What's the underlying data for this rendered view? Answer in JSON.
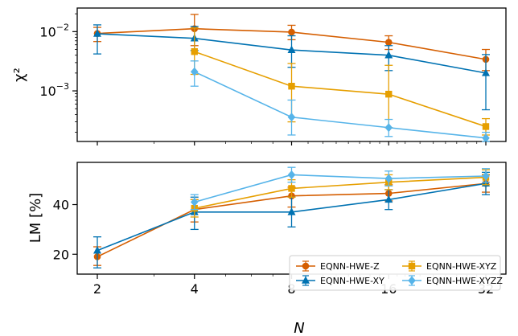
{
  "chart_data": [
    {
      "type": "line",
      "ylabel": "χ²",
      "yscale": "log",
      "ylim": [
        0.00014,
        0.025
      ],
      "x": [
        2,
        4,
        8,
        16,
        32
      ],
      "xscale": "log2",
      "yticks": [
        {
          "value": 0.01,
          "base": "10",
          "exp": "−2"
        },
        {
          "value": 0.001,
          "base": "10",
          "exp": "−3"
        }
      ],
      "series": [
        {
          "name": "EQNN-HWE-Z",
          "color": "#d55e00",
          "marker": "circle",
          "points": [
            {
              "x": 2,
              "y": 0.0093,
              "lo": 0.0068,
              "hi": 0.0118
            },
            {
              "x": 4,
              "y": 0.0112,
              "lo": 0.0058,
              "hi": 0.0195
            },
            {
              "x": 8,
              "y": 0.0098,
              "lo": 0.0073,
              "hi": 0.0128
            },
            {
              "x": 16,
              "y": 0.0066,
              "lo": 0.005,
              "hi": 0.0085
            },
            {
              "x": 32,
              "y": 0.0034,
              "lo": 0.0022,
              "hi": 0.005
            }
          ]
        },
        {
          "name": "EQNN-HWE-XY",
          "color": "#0072b2",
          "marker": "triangle",
          "points": [
            {
              "x": 2,
              "y": 0.0092,
              "lo": 0.0042,
              "hi": 0.013
            },
            {
              "x": 4,
              "y": 0.0077,
              "lo": 0.0048,
              "hi": 0.0122
            },
            {
              "x": 8,
              "y": 0.0049,
              "lo": 0.0025,
              "hi": 0.0085
            },
            {
              "x": 16,
              "y": 0.004,
              "lo": 0.0022,
              "hi": 0.0058
            },
            {
              "x": 32,
              "y": 0.002,
              "lo": 0.00048,
              "hi": 0.0041
            }
          ]
        },
        {
          "name": "EQNN-HWE-XYZ",
          "color": "#e69f00",
          "marker": "square",
          "points": [
            {
              "x": 4,
              "y": 0.0046,
              "lo": 0.0019,
              "hi": 0.0115
            },
            {
              "x": 8,
              "y": 0.0012,
              "lo": 0.0003,
              "hi": 0.0029
            },
            {
              "x": 16,
              "y": 0.00088,
              "lo": 0.00024,
              "hi": 0.0027
            },
            {
              "x": 32,
              "y": 0.00025,
              "lo": 0.00018,
              "hi": 0.00034
            }
          ]
        },
        {
          "name": "EQNN-HWE-XYZZ",
          "color": "#56b4e9",
          "marker": "diamond",
          "points": [
            {
              "x": 4,
              "y": 0.0021,
              "lo": 0.0012,
              "hi": 0.0032
            },
            {
              "x": 8,
              "y": 0.00036,
              "lo": 0.00018,
              "hi": 0.0007
            },
            {
              "x": 16,
              "y": 0.00024,
              "lo": 0.00017,
              "hi": 0.00033
            },
            {
              "x": 32,
              "y": 0.00016,
              "lo": 0.00014,
              "hi": 0.0002
            }
          ]
        }
      ]
    },
    {
      "type": "line",
      "ylabel": "LM [%]",
      "xlabel": "N",
      "ylim": [
        12,
        57
      ],
      "x": [
        2,
        4,
        8,
        16,
        32
      ],
      "xscale": "log2",
      "yticks": [
        20,
        40
      ],
      "xticks": [
        "2",
        "4",
        "8",
        "16",
        "32"
      ],
      "legend": "bottom-right",
      "series": [
        {
          "name": "EQNN-HWE-Z",
          "color": "#d55e00",
          "marker": "circle",
          "points": [
            {
              "x": 2,
              "y": 19.0,
              "lo": 15.5,
              "hi": 23.0
            },
            {
              "x": 4,
              "y": 38.0,
              "lo": 33.0,
              "hi": 42.0
            },
            {
              "x": 8,
              "y": 43.5,
              "lo": 39.0,
              "hi": 47.0
            },
            {
              "x": 16,
              "y": 44.5,
              "lo": 41.5,
              "hi": 48.0
            },
            {
              "x": 32,
              "y": 48.5,
              "lo": 45.0,
              "hi": 52.0
            }
          ]
        },
        {
          "name": "EQNN-HWE-XY",
          "color": "#0072b2",
          "marker": "triangle",
          "points": [
            {
              "x": 2,
              "y": 21.5,
              "lo": 14.5,
              "hi": 27.0
            },
            {
              "x": 4,
              "y": 37.0,
              "lo": 30.0,
              "hi": 43.0
            },
            {
              "x": 8,
              "y": 37.0,
              "lo": 31.0,
              "hi": 43.0
            },
            {
              "x": 16,
              "y": 42.0,
              "lo": 38.0,
              "hi": 46.0
            },
            {
              "x": 32,
              "y": 48.5,
              "lo": 44.0,
              "hi": 53.0
            }
          ]
        },
        {
          "name": "EQNN-HWE-XYZ",
          "color": "#e69f00",
          "marker": "square",
          "points": [
            {
              "x": 4,
              "y": 38.5,
              "lo": 35.0,
              "hi": 42.0
            },
            {
              "x": 8,
              "y": 46.5,
              "lo": 43.0,
              "hi": 50.0
            },
            {
              "x": 16,
              "y": 49.0,
              "lo": 46.0,
              "hi": 52.0
            },
            {
              "x": 32,
              "y": 51.0,
              "lo": 48.0,
              "hi": 54.0
            }
          ]
        },
        {
          "name": "EQNN-HWE-XYZZ",
          "color": "#56b4e9",
          "marker": "diamond",
          "points": [
            {
              "x": 4,
              "y": 41.0,
              "lo": 38.0,
              "hi": 44.0
            },
            {
              "x": 8,
              "y": 52.0,
              "lo": 49.0,
              "hi": 55.0
            },
            {
              "x": 16,
              "y": 50.5,
              "lo": 47.5,
              "hi": 53.5
            },
            {
              "x": 32,
              "y": 51.5,
              "lo": 49.0,
              "hi": 54.5
            }
          ]
        }
      ]
    }
  ]
}
